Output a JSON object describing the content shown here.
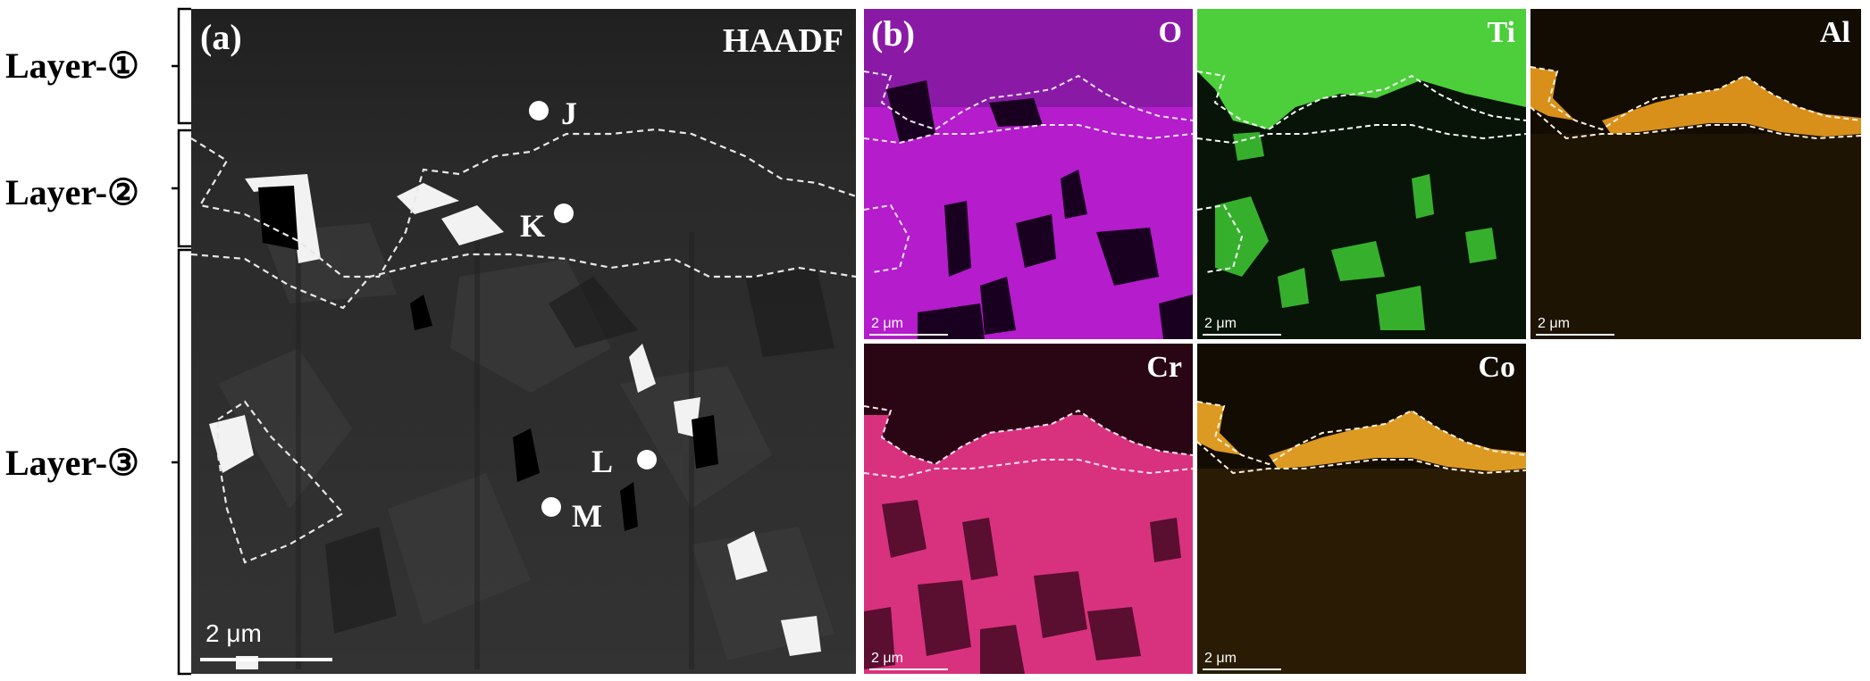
{
  "layers": [
    {
      "label": "Layer-①"
    },
    {
      "label": "Layer-②"
    },
    {
      "label": "Layer-③"
    }
  ],
  "panel_a": {
    "tag": "(a)",
    "mode": "HAADF",
    "scale": "2 μm",
    "points": [
      "J",
      "K",
      "L",
      "M"
    ]
  },
  "panel_b": {
    "tag": "(b)",
    "maps": [
      {
        "element": "O",
        "color": "#c020d8",
        "scale": "2 μm"
      },
      {
        "element": "Ti",
        "color": "#36c82e",
        "scale": "2 μm"
      },
      {
        "element": "Al",
        "color": "#d88a1a",
        "scale": "2 μm"
      },
      {
        "element": "Cr",
        "color": "#d83a8a",
        "scale": "2 μm"
      },
      {
        "element": "Co",
        "color": "#d89a1a",
        "scale": "2 μm"
      }
    ]
  }
}
